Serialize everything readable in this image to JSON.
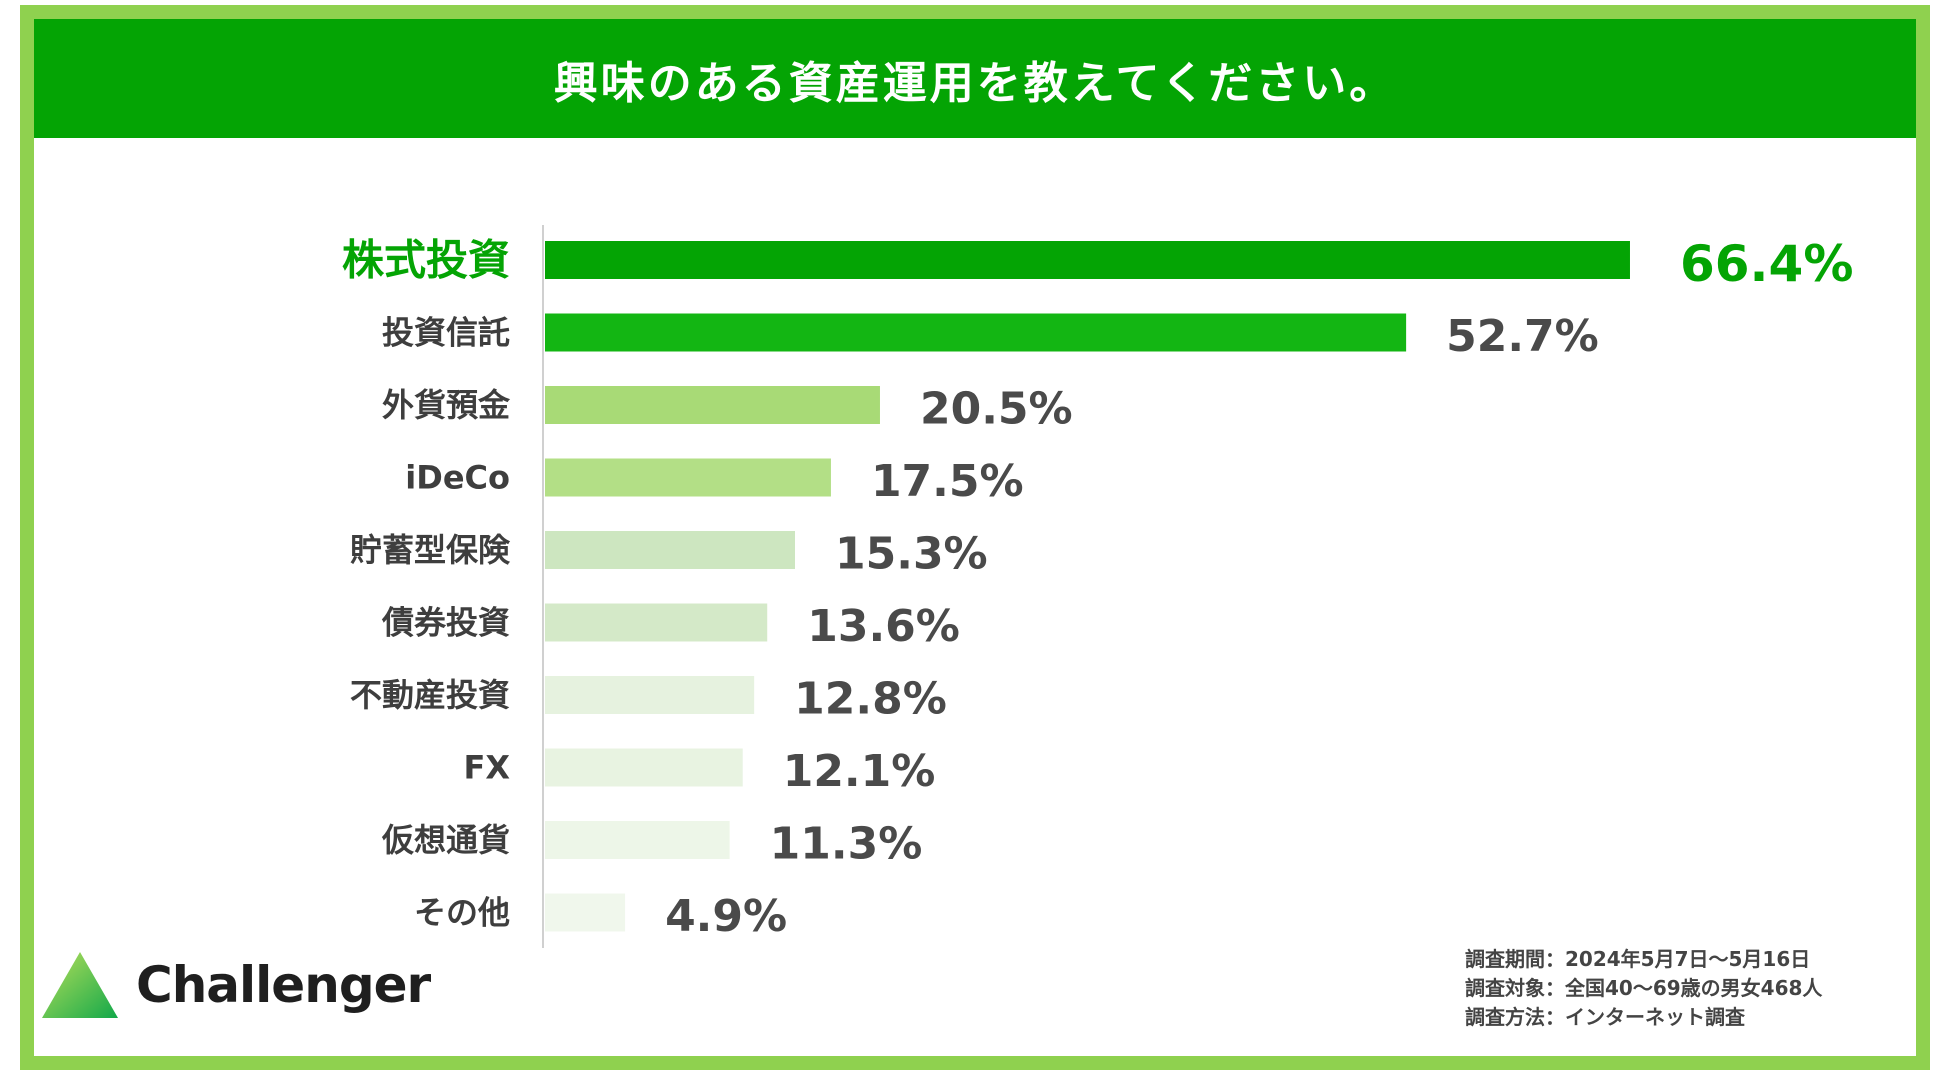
{
  "title": "興味のある資産運用を教えてください。",
  "chart_data": {
    "type": "bar",
    "orientation": "horizontal",
    "categories": [
      "株式投資",
      "投資信託",
      "外貨預金",
      "iDeCo",
      "貯蓄型保険",
      "債券投資",
      "不動産投資",
      "FX",
      "仮想通貨",
      "その他"
    ],
    "values": [
      66.4,
      52.7,
      20.5,
      17.5,
      15.3,
      13.6,
      12.8,
      12.1,
      11.3,
      4.9
    ],
    "value_labels": [
      "66.4%",
      "52.7%",
      "20.5%",
      "17.5%",
      "15.3%",
      "13.6%",
      "12.8%",
      "12.1%",
      "11.3%",
      "4.9%"
    ],
    "unit": "%",
    "highlight_index": 0,
    "colors": [
      "#04a404",
      "#13b613",
      "#a8da76",
      "#b3df86",
      "#cde6c0",
      "#d4e9c8",
      "#e6f2df",
      "#e8f3e1",
      "#edf6e8",
      "#f0f7ec"
    ],
    "highlight_color": "#04a404",
    "grid": false,
    "legend": "none"
  },
  "logo": {
    "name": "Challenger",
    "icon": "green-triangle-icon"
  },
  "notes": [
    "調査期間：2024年5月7日〜5月16日",
    "調査対象：全国40〜69歳の男女468人",
    "調査方法：インターネット調査"
  ]
}
